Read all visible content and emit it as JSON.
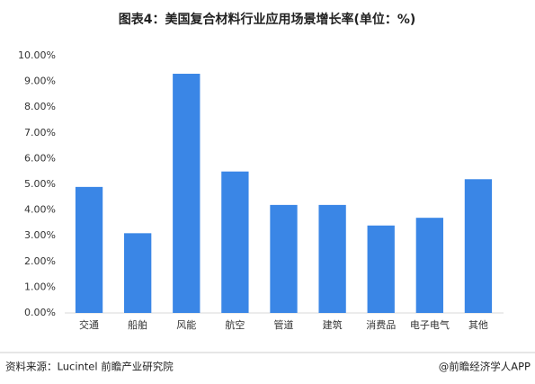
{
  "chart_data": {
    "type": "bar",
    "title": "图表4：美国复合材料行业应用场景增长率(单位：%)",
    "categories": [
      "交通",
      "船舶",
      "风能",
      "航空",
      "管道",
      "建筑",
      "消费品",
      "电子电气",
      "其他"
    ],
    "values": [
      4.9,
      3.1,
      9.3,
      5.5,
      4.2,
      4.2,
      3.4,
      3.7,
      5.2
    ],
    "color": "#3a86e6",
    "ylim": [
      0,
      10
    ],
    "yticks": [
      {
        "value": 0,
        "label": "0.00%"
      },
      {
        "value": 1,
        "label": "1.00%"
      },
      {
        "value": 2,
        "label": "2.00%"
      },
      {
        "value": 3,
        "label": "3.00%"
      },
      {
        "value": 4,
        "label": "4.00%"
      },
      {
        "value": 5,
        "label": "5.00%"
      },
      {
        "value": 6,
        "label": "6.00%"
      },
      {
        "value": 7,
        "label": "7.00%"
      },
      {
        "value": 8,
        "label": "8.00%"
      },
      {
        "value": 9,
        "label": "9.00%"
      },
      {
        "value": 10,
        "label": "10.00%"
      }
    ],
    "grid": false,
    "source": "资料来源：Lucintel 前瞻产业研究院",
    "credit": "@前瞻经济学人APP"
  }
}
